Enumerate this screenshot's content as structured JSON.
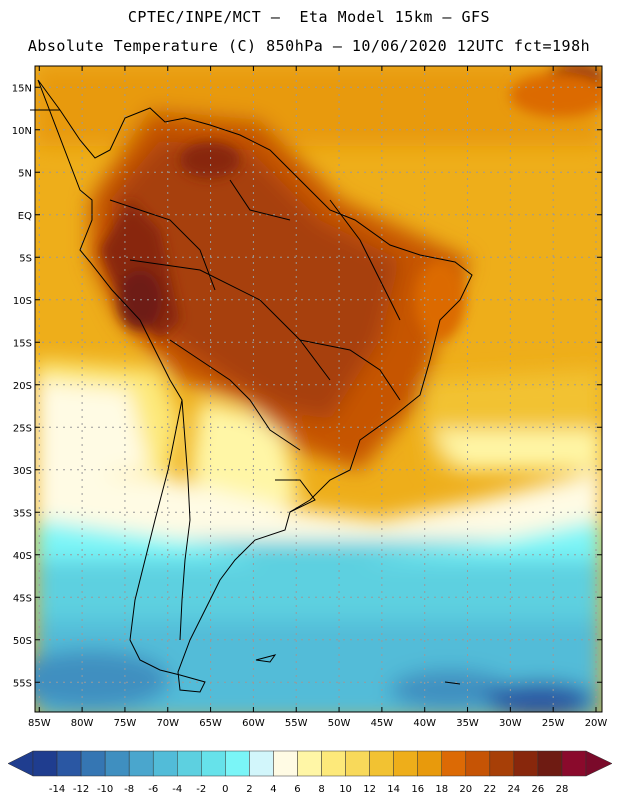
{
  "header": {
    "line1": "CPTEC/INPE/MCT –  Eta Model 15km – GFS",
    "line2": "Absolute Temperature (C) 850hPa – 10/06/2020 12UTC fct=198h"
  },
  "map": {
    "lat_labels": [
      "15N",
      "10N",
      "5N",
      "EQ",
      "5S",
      "10S",
      "15S",
      "20S",
      "25S",
      "30S",
      "35S",
      "40S",
      "45S",
      "50S",
      "55S"
    ],
    "lon_labels": [
      "85W",
      "80W",
      "75W",
      "70W",
      "65W",
      "60W",
      "55W",
      "50W",
      "45W",
      "40W",
      "35W",
      "30W",
      "25W",
      "20W"
    ]
  },
  "colorbar": {
    "labels": [
      "-14",
      "-12",
      "-10",
      "-8",
      "-6",
      "-4",
      "-2",
      "0",
      "2",
      "4",
      "6",
      "8",
      "10",
      "12",
      "14",
      "16",
      "18",
      "20",
      "22",
      "24",
      "26",
      "28"
    ],
    "colors": [
      "#1f3d8f",
      "#2a57a3",
      "#3576b3",
      "#3f8fc0",
      "#4aa6cd",
      "#52bcd8",
      "#5dd0e0",
      "#66e2ea",
      "#7af5f7",
      "#d2f6fb",
      "#fffbe4",
      "#fff6a6",
      "#fde97a",
      "#f8d95a",
      "#f2c232",
      "#eeae1a",
      "#e89a0c",
      "#dc6a05",
      "#c65405",
      "#a73f07",
      "#88270c",
      "#6e1b12",
      "#8a0a2c"
    ]
  }
}
